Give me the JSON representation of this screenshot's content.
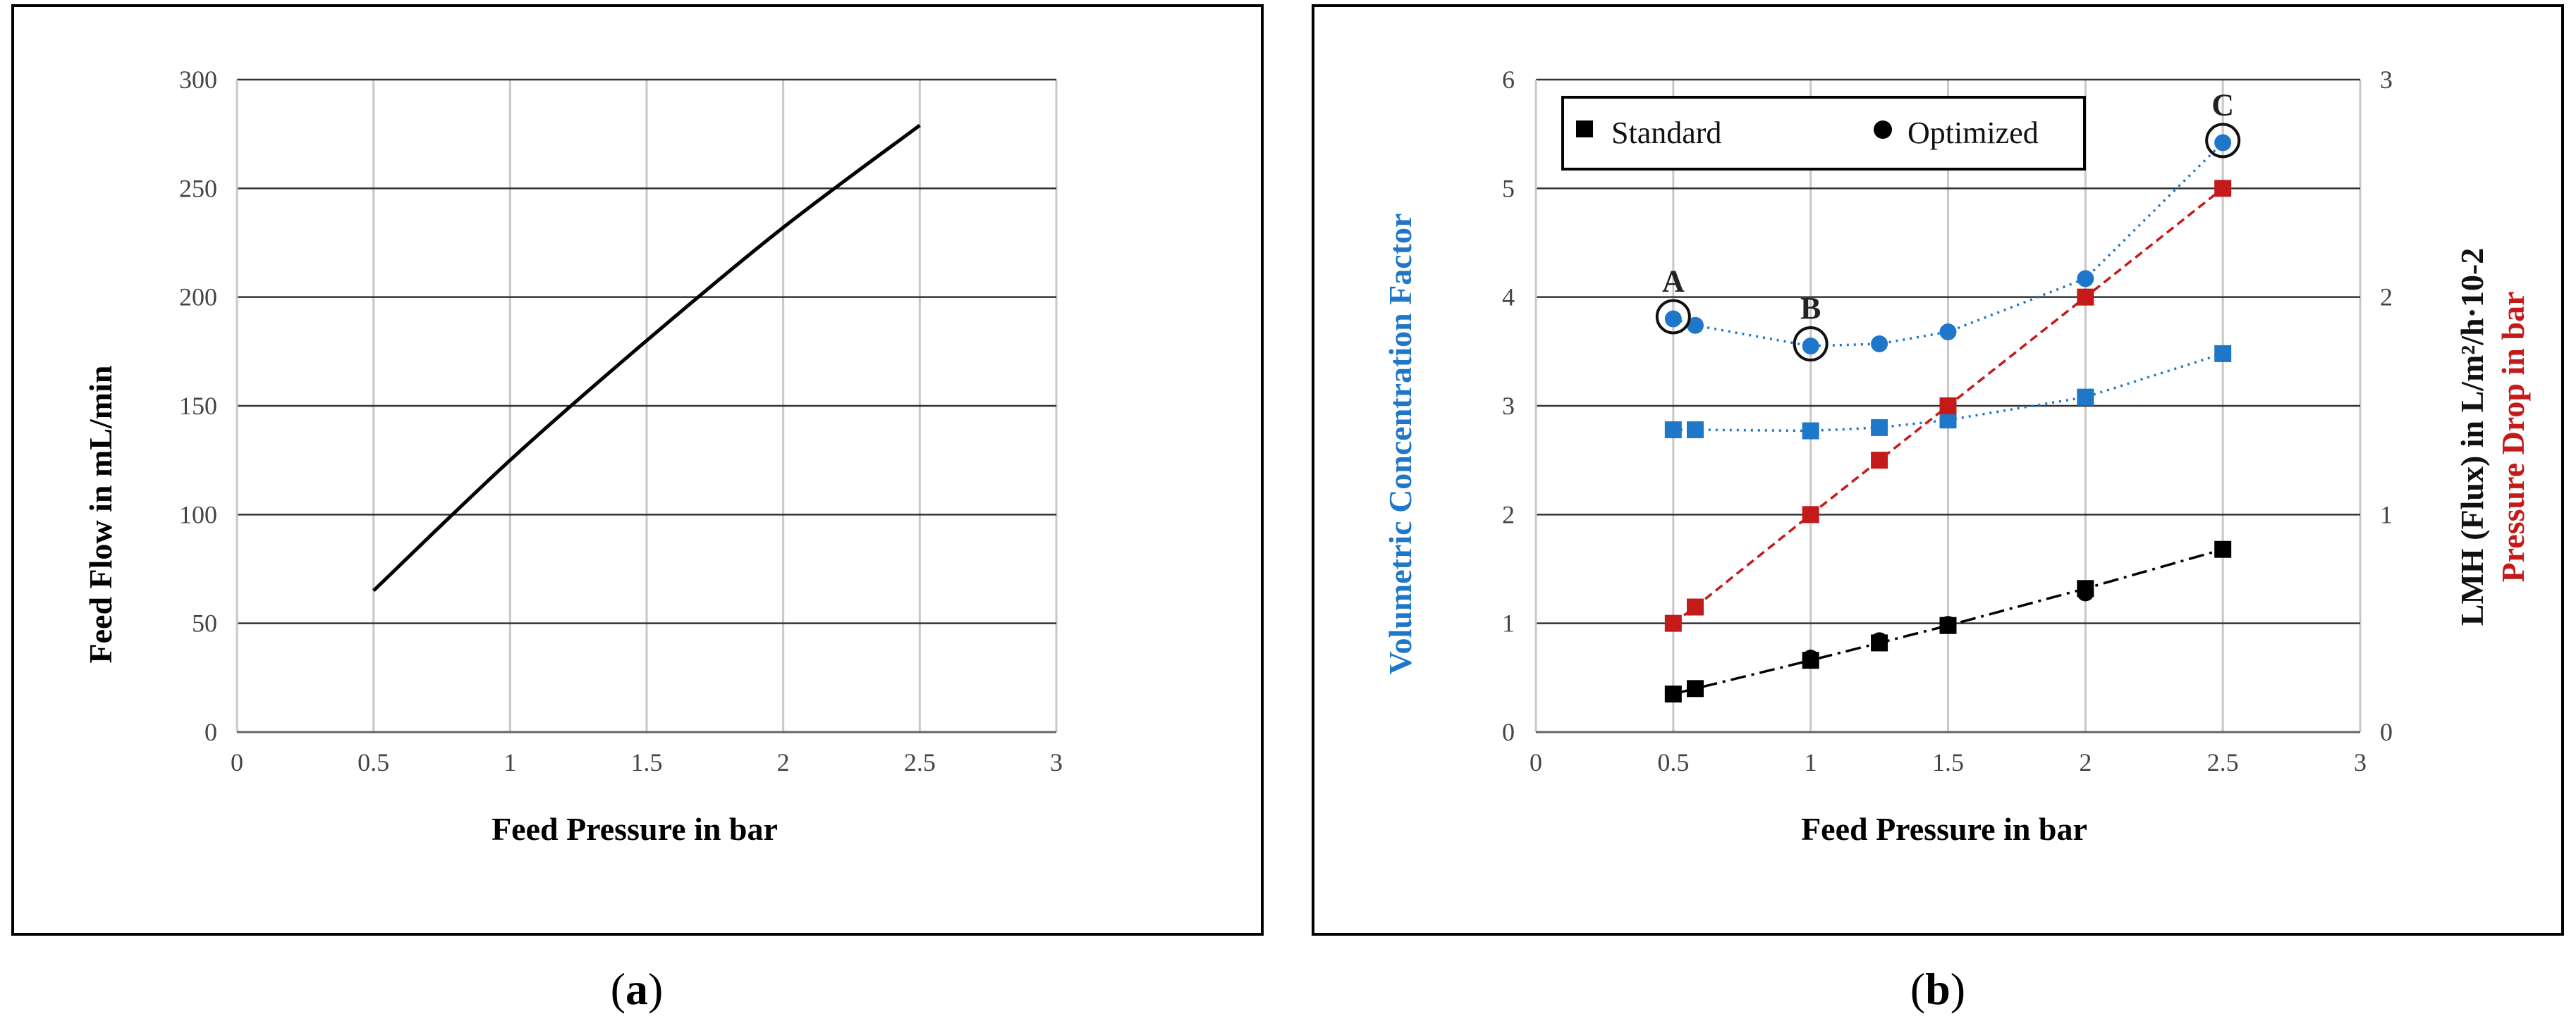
{
  "chart_data": [
    {
      "type": "line",
      "panel": "a",
      "xlabel": "Feed Pressure in bar",
      "ylabel": "Feed Flow in mL/min",
      "xlim": [
        0,
        3
      ],
      "ylim": [
        0,
        300
      ],
      "xticks": [
        "0",
        "0.5",
        "1",
        "1.5",
        "2",
        "2.5",
        "3"
      ],
      "yticks": [
        "0",
        "50",
        "100",
        "150",
        "200",
        "250",
        "300"
      ],
      "grid": true,
      "series": [
        {
          "x": [
            0.5,
            1.0,
            1.5,
            2.0,
            2.5
          ],
          "y": [
            65,
            125,
            180,
            232,
            279
          ]
        }
      ]
    },
    {
      "type": "scatter",
      "panel": "b",
      "xlabel": "Feed Pressure in bar",
      "ylabel_left": "Volumetric Concentration Factor",
      "ylabel_right_1": "LMH (Flux) in  L/m²/h·10-2",
      "ylabel_right_2": "Pressure Drop in  bar",
      "xlim": [
        0,
        3
      ],
      "ylim_left": [
        0,
        6
      ],
      "ylim_right": [
        0,
        3
      ],
      "xticks": [
        "0",
        "0.5",
        "1",
        "1.5",
        "2",
        "2.5",
        "3"
      ],
      "yticks_left": [
        "0",
        "1",
        "2",
        "3",
        "4",
        "5",
        "6"
      ],
      "yticks_right": [
        "0",
        "1",
        "2",
        "3"
      ],
      "grid": true,
      "legend": {
        "position": "top-left",
        "entries": [
          "Standard",
          "Optimized"
        ]
      },
      "series": [
        {
          "group": "vcf",
          "marker": "circle",
          "color": "#1f77c9",
          "axis": "left",
          "x": [
            0.5,
            0.58,
            1.0,
            1.25,
            1.5,
            2.0,
            2.5
          ],
          "y": [
            3.8,
            3.74,
            3.55,
            3.57,
            3.68,
            4.17,
            5.42
          ]
        },
        {
          "group": "vcf",
          "marker": "square",
          "color": "#1f77c9",
          "axis": "left",
          "x": [
            0.5,
            0.58,
            1.0,
            1.25,
            1.5,
            2.0,
            2.5
          ],
          "y": [
            2.78,
            2.78,
            2.77,
            2.8,
            2.87,
            3.08,
            3.48
          ]
        },
        {
          "group": "pressure_drop",
          "marker": "square",
          "color": "#c41a1a",
          "axis": "left",
          "x": [
            0.5,
            0.58,
            1.0,
            1.25,
            1.5,
            2.0,
            2.5
          ],
          "y": [
            1.0,
            1.15,
            2.0,
            2.5,
            3.0,
            4.0,
            5.0
          ]
        },
        {
          "group": "flux",
          "marker": "square",
          "color": "#000000",
          "axis": "left",
          "x": [
            0.5,
            0.58,
            1.0,
            1.25,
            1.5,
            2.0,
            2.5
          ],
          "y": [
            0.35,
            0.4,
            0.66,
            0.82,
            0.98,
            1.32,
            1.68
          ]
        },
        {
          "group": "flux",
          "marker": "circle",
          "color": "#000000",
          "axis": "left",
          "x": [
            1.0,
            1.25,
            1.5,
            2.0
          ],
          "y": [
            0.68,
            0.84,
            0.99,
            1.28
          ]
        }
      ],
      "annotations": [
        {
          "label": "A",
          "x": 0.5,
          "y": 3.82
        },
        {
          "label": "B",
          "x": 1.0,
          "y": 3.57
        },
        {
          "label": "C",
          "x": 2.5,
          "y": 5.44
        }
      ]
    }
  ],
  "captions": {
    "a": "a",
    "b": "b"
  }
}
